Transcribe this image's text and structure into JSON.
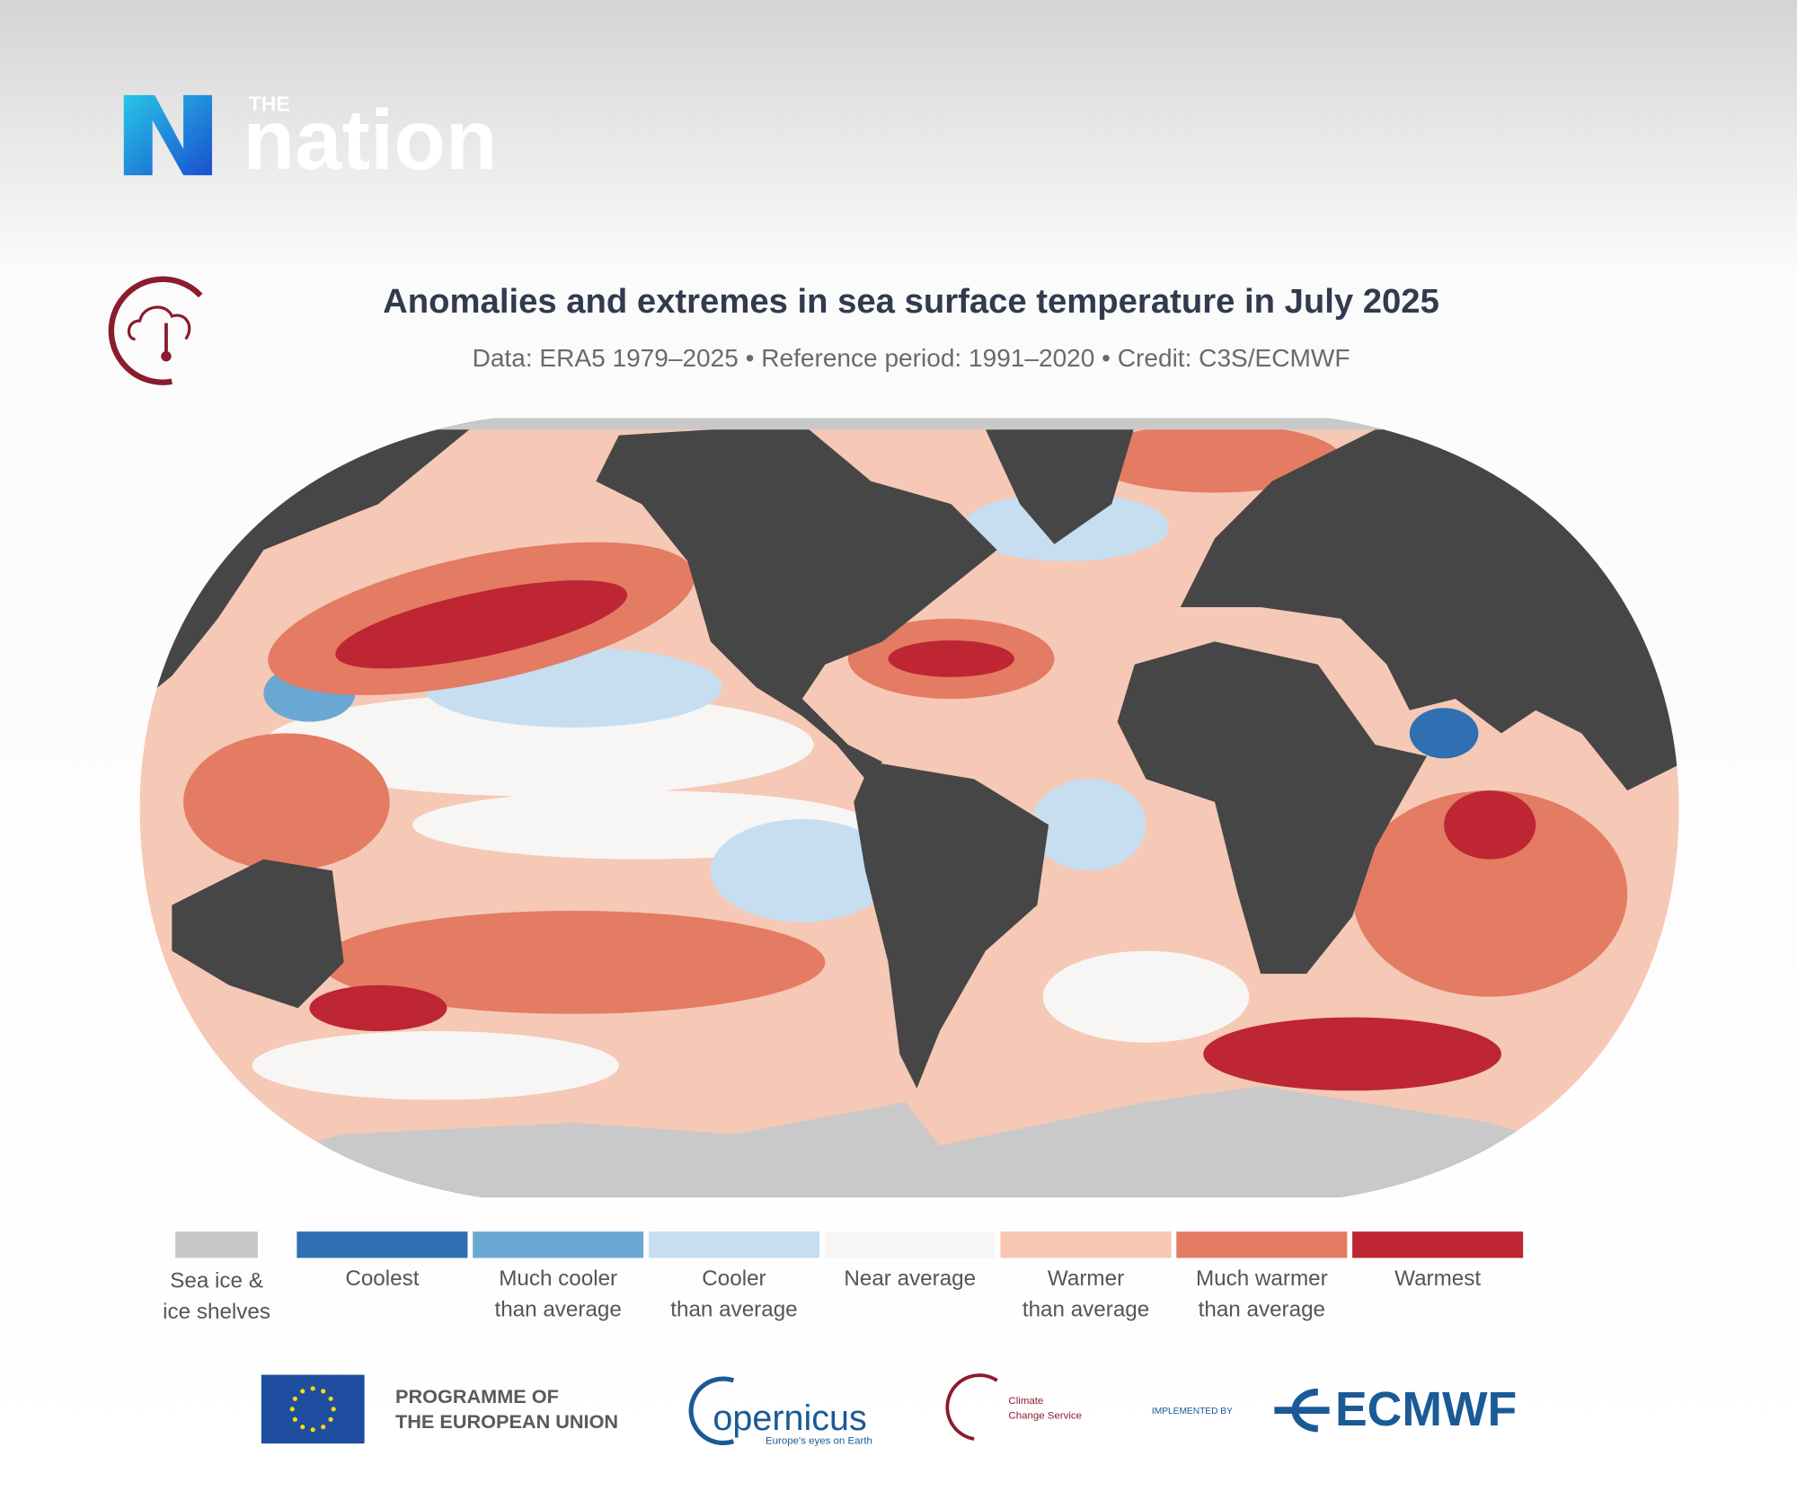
{
  "header": {
    "brand_small": "THE",
    "brand": "nation"
  },
  "title": "Anomalies and extremes in sea surface temperature in July 2025",
  "subtitle": "Data: ERA5 1979–2025 • Reference period: 1991–2020 • Credit: C3S/ECMWF",
  "legend": [
    {
      "lines": [
        "Sea ice &",
        "ice shelves"
      ],
      "color": "#c8c8c8"
    },
    {
      "lines": [
        "Coolest"
      ],
      "color": "#2f6fb2"
    },
    {
      "lines": [
        "Much cooler",
        "than average"
      ],
      "color": "#6aa8d3"
    },
    {
      "lines": [
        "Cooler",
        "than average"
      ],
      "color": "#c6def0"
    },
    {
      "lines": [
        "Near average"
      ],
      "color": "#f7f6f5"
    },
    {
      "lines": [
        "Warmer",
        "than average"
      ],
      "color": "#f8c6b1"
    },
    {
      "lines": [
        "Much warmer",
        "than average"
      ],
      "color": "#e47b63"
    },
    {
      "lines": [
        "Warmest"
      ],
      "color": "#bd2632"
    }
  ],
  "footer": {
    "eu": [
      "PROGRAMME OF",
      "THE EUROPEAN UNION"
    ],
    "copernicus": "opernicus",
    "copernicus_tagline": "Europe's eyes on Earth",
    "c3s": [
      "Climate",
      "Change Service"
    ],
    "implemented_by": "IMPLEMENTED BY",
    "ecmwf": "ECMWF"
  }
}
